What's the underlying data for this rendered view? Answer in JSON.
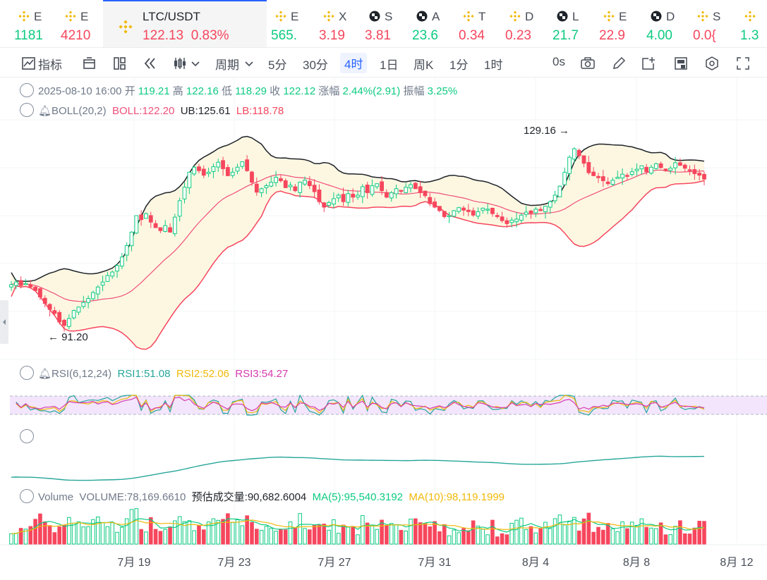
{
  "tickers": [
    {
      "sym": "E",
      "price": "1181",
      "dir": "up",
      "icon": "binance-icon"
    },
    {
      "sym": "E",
      "price": "4210",
      "dir": "dn",
      "icon": "binance-icon"
    },
    {
      "sym": "LTC/USDT",
      "price": "122.13",
      "change": "0.83%",
      "dir": "dn",
      "icon": "binance-icon",
      "active": true
    },
    {
      "sym": "E",
      "price": "565.",
      "dir": "up",
      "icon": "binance-icon"
    },
    {
      "sym": "X",
      "price": "3.19",
      "dir": "dn",
      "icon": "binance-icon"
    },
    {
      "sym": "S",
      "price": "3.81",
      "dir": "dn",
      "icon": "checker-icon"
    },
    {
      "sym": "A",
      "price": "23.6",
      "dir": "up",
      "icon": "checker-icon"
    },
    {
      "sym": "T",
      "price": "0.34",
      "dir": "dn",
      "icon": "binance-icon"
    },
    {
      "sym": "D",
      "price": "0.23",
      "dir": "dn",
      "icon": "binance-icon"
    },
    {
      "sym": "L",
      "price": "21.7",
      "dir": "up",
      "icon": "checker-icon"
    },
    {
      "sym": "E",
      "price": "22.9",
      "dir": "dn",
      "icon": "binance-icon"
    },
    {
      "sym": "D",
      "price": "4.00",
      "dir": "up",
      "icon": "checker-icon"
    },
    {
      "sym": "S",
      "price": "0.0{",
      "dir": "dn",
      "icon": "binance-icon"
    },
    {
      "sym": "",
      "price": "1.3",
      "dir": "up",
      "icon": "binance-icon"
    }
  ],
  "toolbar": {
    "indicators": "指标",
    "period": "周期",
    "intervals": [
      "5分",
      "30分",
      "4时",
      "1日",
      "周K",
      "1分",
      "1时"
    ],
    "selected": "4时",
    "seconds": "0s"
  },
  "ohlc": {
    "date": "2025-08-10 16:00",
    "open_label": "开",
    "open": "119.21",
    "high_label": "高",
    "high": "122.16",
    "low_label": "低",
    "low": "118.29",
    "close_label": "收",
    "close": "122.12",
    "change_label": "涨幅",
    "change": "2.44%(2.91)",
    "amp_label": "振幅",
    "amp": "3.25%"
  },
  "boll": {
    "name": "BOLL(20,2)",
    "mid": "BOLL:122.20",
    "ub": "UB:125.61",
    "lb": "LB:118.78"
  },
  "rsi": {
    "name": "RSI(6,12,24)",
    "rsi1": "RSI1:51.08",
    "rsi2": "RSI2:52.06",
    "rsi3": "RSI3:54.27"
  },
  "volume": {
    "name": "Volume",
    "vol": "VOLUME:78,169.6610",
    "est": "预估成交量:90,682.6004",
    "ma5": "MA(5):95,540.3192",
    "ma10": "MA(10):98,119.1999"
  },
  "price_marks": {
    "high": "129.16",
    "low": "91.20"
  },
  "x_labels": [
    "7月 19",
    "7月 23",
    "7月 27",
    "7月 31",
    "8月 4",
    "8月 8",
    "8月 12"
  ],
  "colors": {
    "up": "#0ecb81",
    "down": "#f6465d",
    "accent": "#2962ff",
    "boll_mid": "#f0507a",
    "band_fill": "#fdf7e2"
  },
  "chart_data": {
    "type": "candlestick",
    "close_path": [
      101,
      101.5,
      100.8,
      101.2,
      100.5,
      99.8,
      98.5,
      97.2,
      96,
      95.2,
      93.5,
      92.8,
      94.2,
      95.8,
      96.5,
      97.4,
      98.2,
      99.4,
      100.5,
      101.5,
      102.8,
      103.5,
      104.8,
      106.5,
      108.8,
      111.5,
      114.8,
      114,
      115.2,
      113.5,
      112.4,
      111.8,
      112.8,
      111.5,
      114.5,
      117.8,
      120.5,
      123.5,
      124.5,
      123.8,
      122.9,
      123.5,
      124.6,
      125.5,
      124.2,
      122.8,
      123.5,
      124.5,
      125.6,
      123.8,
      121.5,
      119.5,
      120.2,
      120.8,
      121.5,
      122.5,
      121.8,
      120.4,
      120.9,
      119.8,
      121.5,
      121.9,
      120.8,
      119.6,
      117.6,
      116.5,
      117.4,
      118.2,
      118.9,
      117.6,
      119.2,
      118.5,
      118.9,
      120.6,
      119.4,
      120.8,
      121.2,
      119.8,
      118.5,
      119.4,
      120.2,
      119.8,
      120.5,
      121,
      120.2,
      119.4,
      118.8,
      117.2,
      116.5,
      115.8,
      114.6,
      114.8,
      115.8,
      116.4,
      115.9,
      115.6,
      114.9,
      115.6,
      116.3,
      116.1,
      115.2,
      114.6,
      113.8,
      113.2,
      113.9,
      114.1,
      114.9,
      115.5,
      115.3,
      116.1,
      115.8,
      116.7,
      117.6,
      118.9,
      120.7,
      123.5,
      126.5,
      128.2,
      126.8,
      125.3,
      123.4,
      122.8,
      122.4,
      121.8,
      121.2,
      121.9,
      122.5,
      123.1,
      122.8,
      123.6,
      124.1,
      124.8,
      123.6,
      124.5,
      125.2,
      124.4,
      123.8,
      124.3,
      125.4,
      124.9,
      124.3,
      123.8,
      123.2,
      122.9,
      122.12
    ]
  }
}
